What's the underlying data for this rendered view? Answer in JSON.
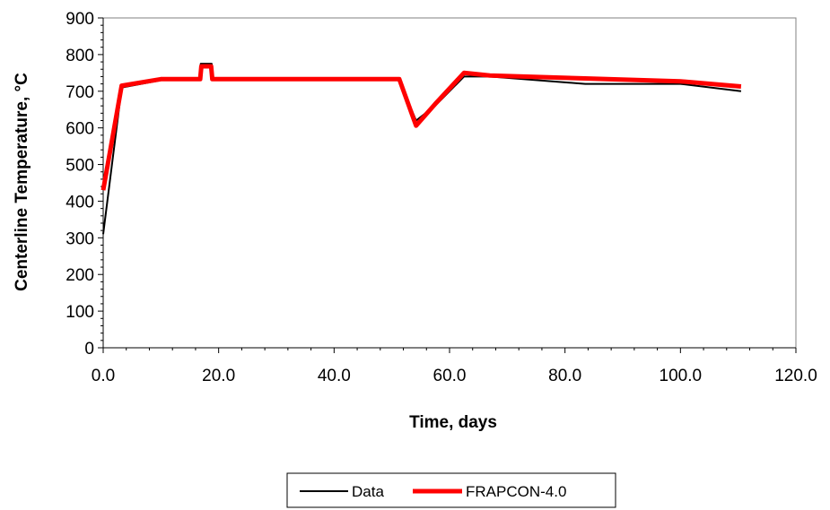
{
  "chart_data": {
    "type": "line",
    "xlabel": "Time, days",
    "ylabel": "Centerline Temperature, °C",
    "xlim": [
      0,
      120
    ],
    "ylim": [
      0,
      900
    ],
    "x_ticks": [
      "0.0",
      "20.0",
      "40.0",
      "60.0",
      "80.0",
      "100.0",
      "120.0"
    ],
    "y_ticks": [
      "0",
      "100",
      "200",
      "300",
      "400",
      "500",
      "600",
      "700",
      "800",
      "900"
    ],
    "grid": false,
    "legend_position": "bottom",
    "series": [
      {
        "name": "Data",
        "color": "#000000",
        "x": [
          0.0,
          3.2,
          10.0,
          16.8,
          16.9,
          18.8,
          18.9,
          51.3,
          54.2,
          57.5,
          62.5,
          67.0,
          83.5,
          100.0,
          110.5
        ],
        "y": [
          310,
          710,
          730,
          730,
          775,
          775,
          730,
          730,
          620,
          660,
          740,
          740,
          720,
          720,
          700
        ]
      },
      {
        "name": "FRAPCON-4.0",
        "color": "#ff0000",
        "x": [
          0.0,
          3.2,
          10.0,
          16.8,
          17.0,
          18.7,
          18.9,
          51.3,
          54.2,
          57.5,
          62.5,
          67.0,
          83.5,
          100.0,
          110.5
        ],
        "y": [
          430,
          715,
          733,
          733,
          768,
          768,
          733,
          733,
          606,
          665,
          750,
          743,
          735,
          727,
          713
        ]
      }
    ]
  }
}
